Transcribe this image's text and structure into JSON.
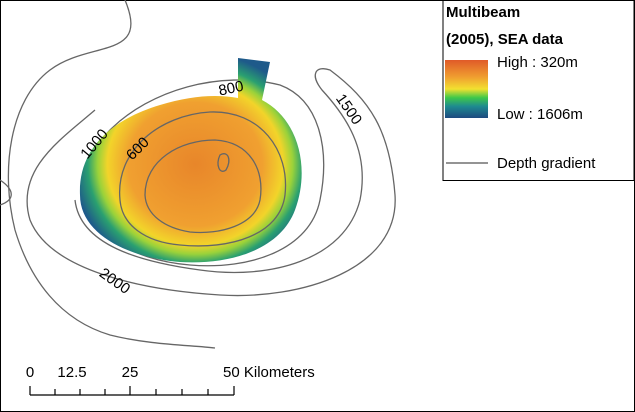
{
  "legend": {
    "title_lines": [
      "Multibeam",
      "(2005), SEA data"
    ],
    "high": "High : 320m",
    "low": "Low : 1606m",
    "line": "Depth gradient"
  },
  "contour_labels": [
    "800",
    "1500",
    "1000",
    "600",
    "2000"
  ],
  "scale_bar": {
    "labels": [
      "0",
      "12.5",
      "25",
      "50 Kilometers"
    ]
  }
}
